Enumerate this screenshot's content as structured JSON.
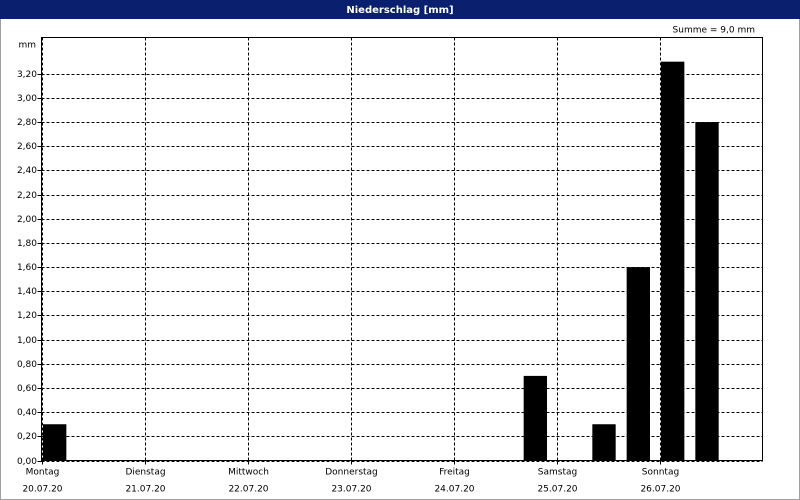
{
  "chart_data": {
    "type": "bar",
    "title": "Niederschlag [mm]",
    "annotation": "Summe = 9,0 mm",
    "ylabel": "mm",
    "x": [
      0,
      1,
      2,
      3,
      4,
      5,
      6,
      7,
      8,
      9,
      10,
      11,
      12,
      13,
      14,
      15,
      16,
      17,
      18,
      19,
      20
    ],
    "values": [
      0.3,
      0,
      0,
      0,
      0,
      0,
      0,
      0,
      0,
      0,
      0,
      0,
      0,
      0,
      0.7,
      0,
      0.3,
      1.6,
      3.3,
      2.8,
      0
    ],
    "color": "#000000",
    "xlim": [
      0,
      21
    ],
    "xticks": [
      {
        "value": 0,
        "label": "Montag",
        "date": "20.07.20"
      },
      {
        "value": 3,
        "label": "Dienstag",
        "date": "21.07.20"
      },
      {
        "value": 6,
        "label": "Mittwoch",
        "date": "22.07.20"
      },
      {
        "value": 9,
        "label": "Donnerstag",
        "date": "23.07.20"
      },
      {
        "value": 12,
        "label": "Freitag",
        "date": "24.07.20"
      },
      {
        "value": 15,
        "label": "Samstag",
        "date": "25.07.20"
      },
      {
        "value": 18,
        "label": "Sonntag",
        "date": "26.07.20"
      }
    ],
    "ylim": [
      0,
      3.5
    ],
    "yticks": [
      {
        "value": 0,
        "label": "0,00"
      },
      {
        "value": 0.2,
        "label": "0,20"
      },
      {
        "value": 0.4,
        "label": "0,40"
      },
      {
        "value": 0.6,
        "label": "0,60"
      },
      {
        "value": 0.8,
        "label": "0,80"
      },
      {
        "value": 1,
        "label": "1,00"
      },
      {
        "value": 1.2,
        "label": "1,20"
      },
      {
        "value": 1.4,
        "label": "1,40"
      },
      {
        "value": 1.6,
        "label": "1,60"
      },
      {
        "value": 1.8,
        "label": "1,80"
      },
      {
        "value": 2,
        "label": "2,00"
      },
      {
        "value": 2.2,
        "label": "2,20"
      },
      {
        "value": 2.4,
        "label": "2,40"
      },
      {
        "value": 2.6,
        "label": "2,60"
      },
      {
        "value": 2.8,
        "label": "2,80"
      },
      {
        "value": 3,
        "label": "3,00"
      },
      {
        "value": 3.2,
        "label": "3,20"
      }
    ],
    "grid": true
  }
}
